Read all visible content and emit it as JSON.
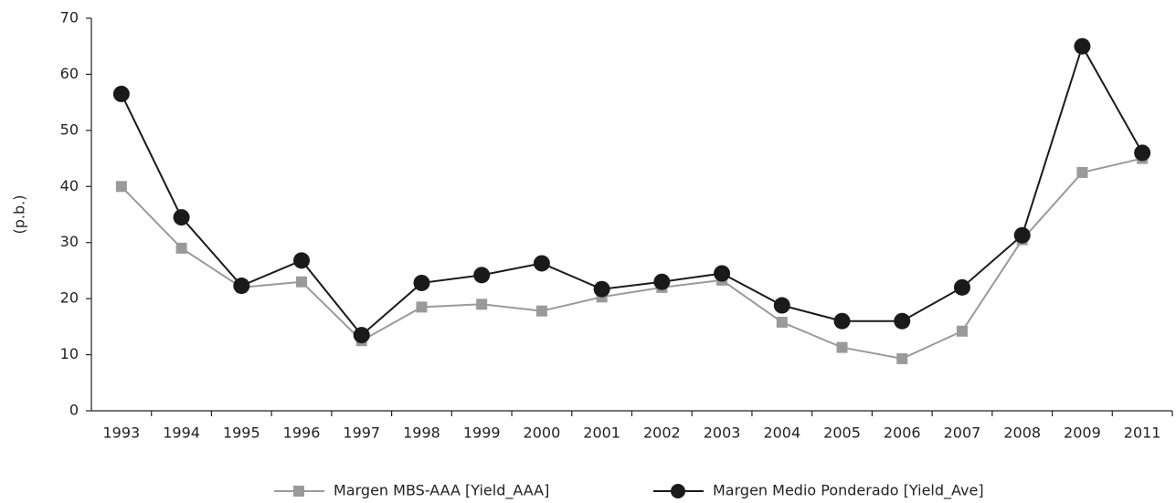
{
  "chart_data": {
    "type": "line",
    "y_label": "(p.b.)",
    "categories": [
      "1993",
      "1994",
      "1995",
      "1996",
      "1997",
      "1998",
      "1999",
      "2000",
      "2001",
      "2002",
      "2003",
      "2004",
      "2005",
      "2006",
      "2007",
      "2008",
      "2009",
      "2011"
    ],
    "series": [
      {
        "name": "Margen MBS-AAA [Yield_AAA]",
        "color": "#9a9a9a",
        "marker": "square",
        "values": [
          40,
          29,
          22,
          23,
          12.5,
          18.5,
          19,
          17.8,
          20.3,
          22,
          23.3,
          15.8,
          11.3,
          9.3,
          14.2,
          30.5,
          42.5,
          45
        ]
      },
      {
        "name": "Margen Medio Ponderado [Yield_Ave]",
        "color": "#1a1a1a",
        "marker": "circle",
        "values": [
          56.5,
          34.5,
          22.3,
          26.8,
          13.5,
          22.8,
          24.2,
          26.3,
          21.7,
          23,
          24.5,
          18.8,
          16,
          16,
          22,
          31.3,
          65,
          46
        ]
      }
    ],
    "ylim": [
      0,
      70
    ],
    "yticks": [
      0,
      10,
      20,
      30,
      40,
      50,
      60,
      70
    ],
    "grid": false,
    "legend": "bottom"
  }
}
